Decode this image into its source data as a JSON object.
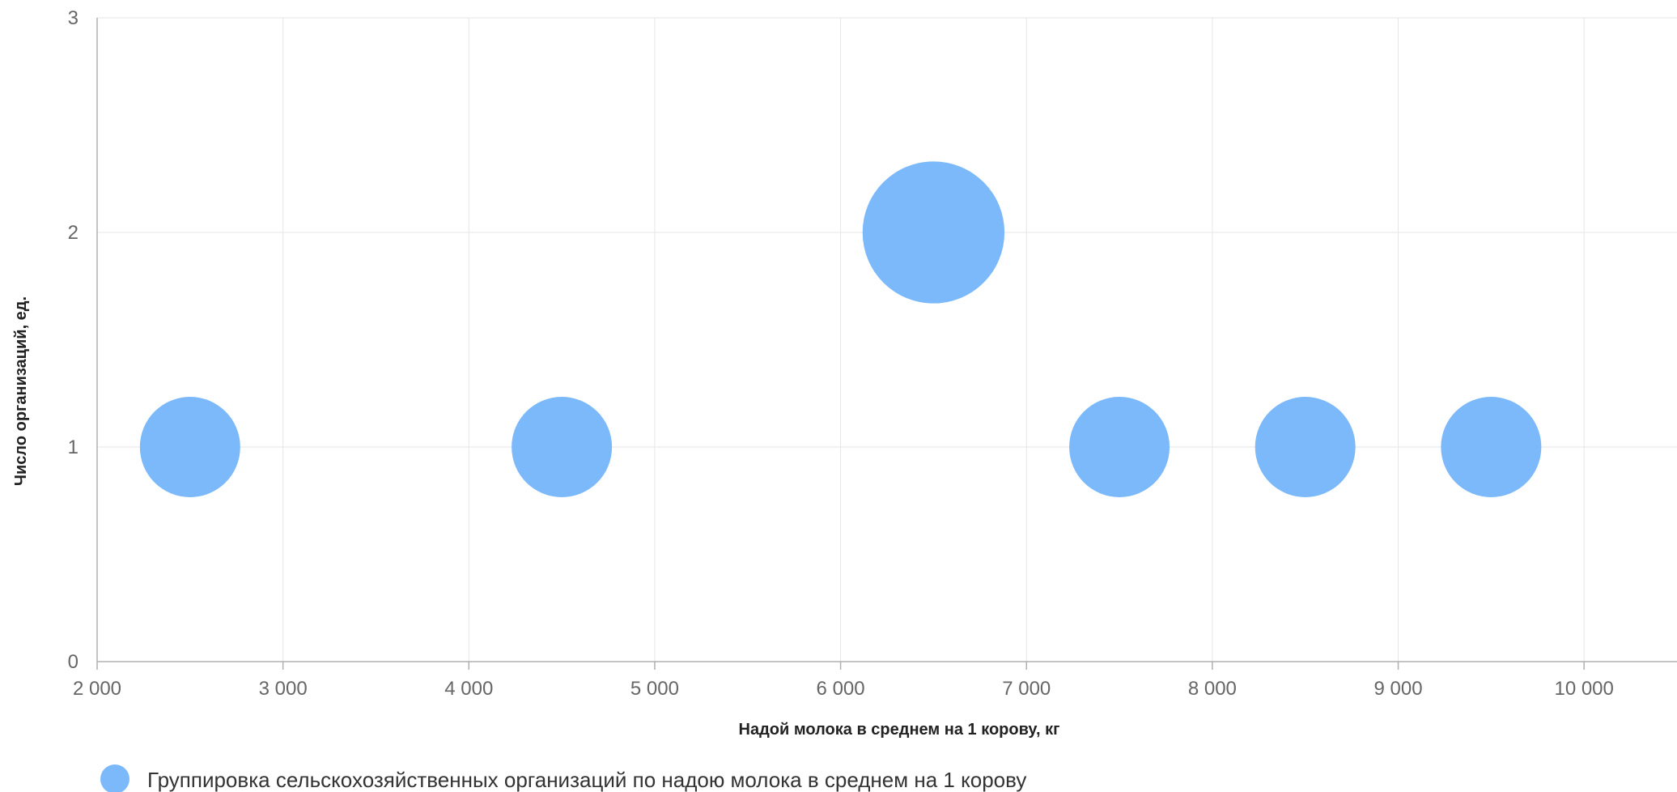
{
  "colors": {
    "bubble": "#7cb9fb",
    "grid": "#e6e6e6",
    "axis": "#b0b0b0",
    "tick_text": "#666666"
  },
  "chart_data": {
    "type": "scatter",
    "subtype": "bubble",
    "title": "",
    "xlabel": "Надой молока в среднем на 1 корову, кг",
    "ylabel": "Число организаций, ед.",
    "xlim": [
      2000,
      10500
    ],
    "ylim": [
      0,
      3
    ],
    "x_ticks": [
      2000,
      3000,
      4000,
      5000,
      6000,
      7000,
      8000,
      9000,
      10000
    ],
    "x_tick_labels": [
      "2 000",
      "3 000",
      "4 000",
      "5 000",
      "6 000",
      "7 000",
      "8 000",
      "9 000",
      "10 000"
    ],
    "y_ticks": [
      0,
      1,
      2,
      3
    ],
    "y_tick_labels": [
      "0",
      "1",
      "2",
      "3"
    ],
    "grid": true,
    "legend_position": "bottom-left",
    "series": [
      {
        "name": "Группировка сельскохозяйственных организаций по надою молока в среднем на 1 корову",
        "color": "#7cb9fb",
        "points": [
          {
            "x": 2500,
            "y": 1,
            "size": 1
          },
          {
            "x": 4500,
            "y": 1,
            "size": 1
          },
          {
            "x": 6500,
            "y": 2,
            "size": 2
          },
          {
            "x": 7500,
            "y": 1,
            "size": 1
          },
          {
            "x": 8500,
            "y": 1,
            "size": 1
          },
          {
            "x": 9500,
            "y": 1,
            "size": 1
          }
        ]
      }
    ]
  }
}
